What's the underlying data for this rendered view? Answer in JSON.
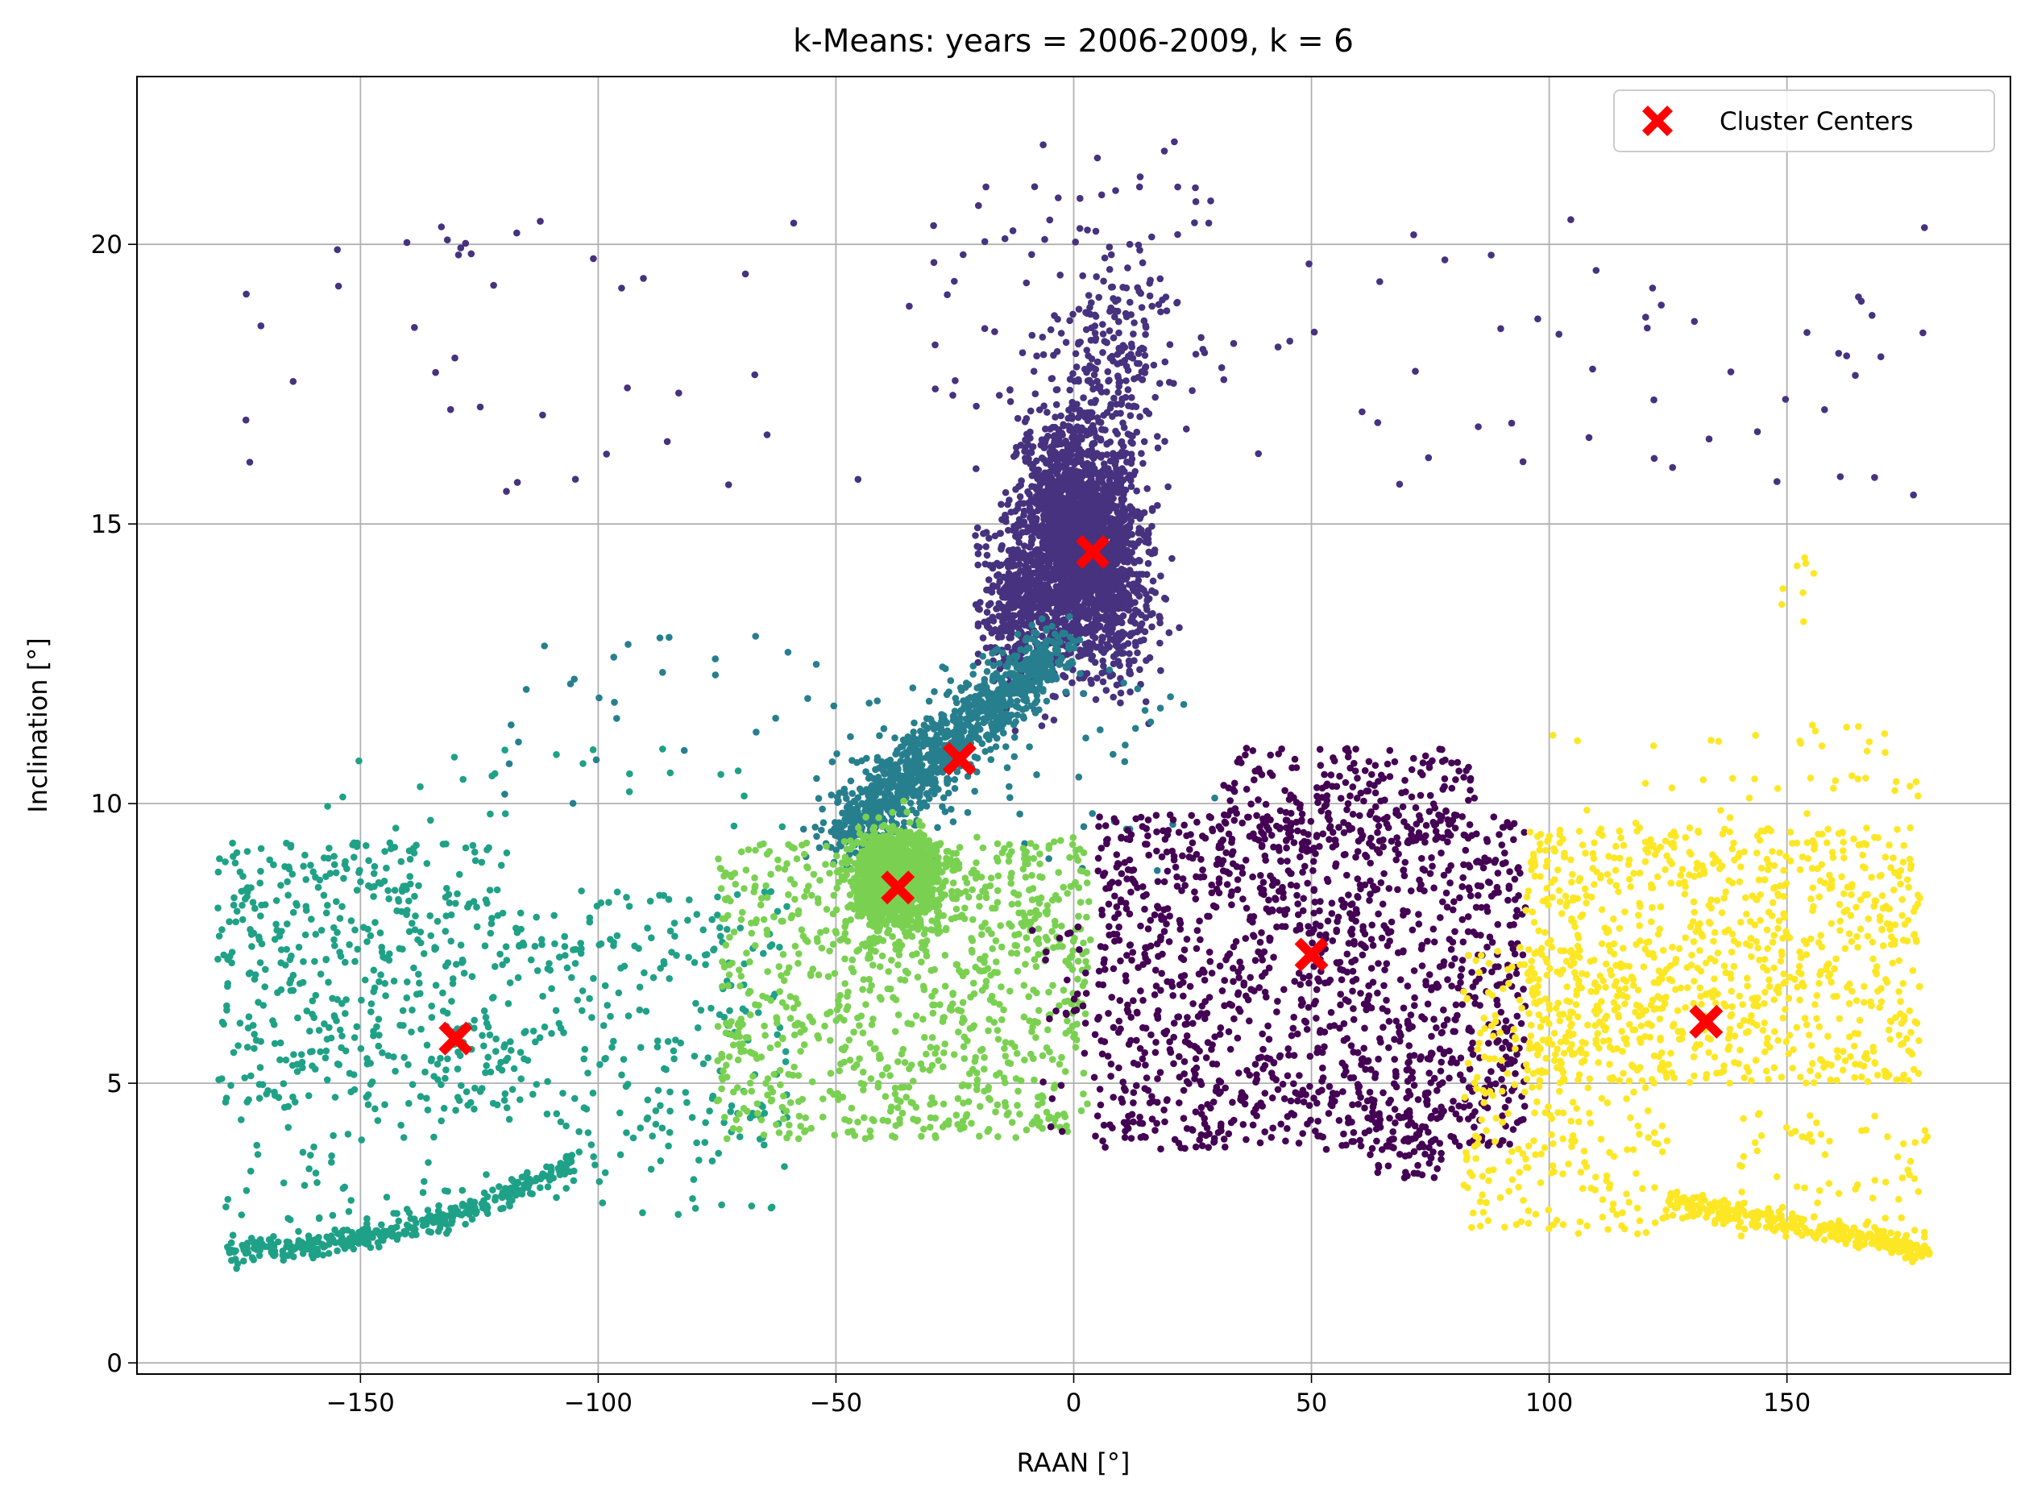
{
  "chart_data": {
    "type": "scatter",
    "title": "k-Means: years = 2006-2009, k = 6",
    "xlabel": "RAAN [°]",
    "ylabel": "Inclination [°]",
    "xlim": [
      -197,
      197
    ],
    "ylim": [
      -0.2,
      23.0
    ],
    "xticks": [
      -150,
      -100,
      -50,
      0,
      50,
      100,
      150
    ],
    "xtick_labels": [
      "−150",
      "−100",
      "−50",
      "0",
      "50",
      "100",
      "150"
    ],
    "yticks": [
      0,
      5,
      10,
      15,
      20
    ],
    "ytick_labels": [
      "0",
      "5",
      "10",
      "15",
      "20"
    ],
    "grid": true,
    "legend": {
      "position": "top-right",
      "entries": [
        "Cluster Centers"
      ]
    },
    "cluster_centers": {
      "name": "Cluster Centers",
      "color": "#ff0000",
      "marker": "X",
      "points": [
        [
          4,
          14.5
        ],
        [
          -24,
          10.8
        ],
        [
          -37,
          8.5
        ],
        [
          50,
          7.3
        ],
        [
          133,
          6.1
        ],
        [
          -130,
          5.8
        ]
      ]
    },
    "clusters": [
      {
        "color": "#46327e",
        "x_range": [
          -30,
          30
        ],
        "y_range": [
          12.5,
          22
        ]
      },
      {
        "color": "#277f8e",
        "x_range": [
          -50,
          20
        ],
        "y_range": [
          9,
          13
        ]
      },
      {
        "color": "#1fa187",
        "x_range": [
          -180,
          -60
        ],
        "y_range": [
          1,
          11
        ]
      },
      {
        "color": "#7ad151",
        "x_range": [
          -80,
          5
        ],
        "y_range": [
          4,
          10
        ]
      },
      {
        "color": "#440154",
        "x_range": [
          -5,
          100
        ],
        "y_range": [
          2.5,
          11.2
        ]
      },
      {
        "color": "#fde725",
        "x_range": [
          80,
          180
        ],
        "y_range": [
          1.7,
          14.5
        ]
      }
    ]
  }
}
